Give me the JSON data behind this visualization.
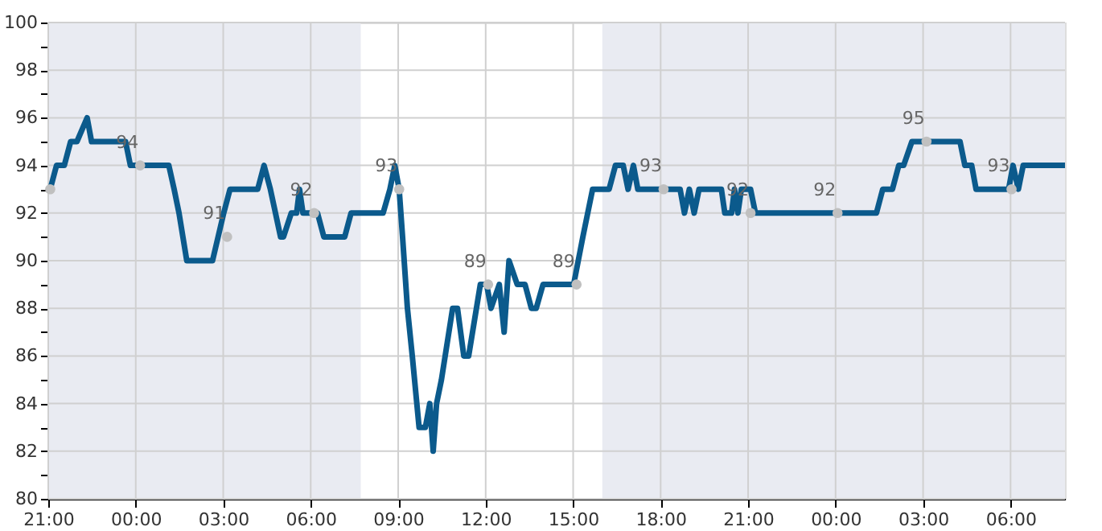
{
  "chart_data": {
    "type": "line",
    "x": [
      "2000-01-01T21:04",
      "2000-01-01T21:17",
      "2000-01-01T21:33",
      "2000-01-01T21:46",
      "2000-01-01T21:59",
      "2000-01-01T22:20",
      "2000-01-01T22:29",
      "2000-01-01T22:40",
      "2000-01-01T23:39",
      "2000-01-01T23:49",
      "2000-01-02T01:08",
      "2000-01-02T01:19",
      "2000-01-02T01:29",
      "2000-01-02T01:45",
      "2000-01-02T02:38",
      "2000-01-02T03:01",
      "2000-01-02T03:14",
      "2000-01-02T04:11",
      "2000-01-02T04:24",
      "2000-01-02T04:37",
      "2000-01-02T04:58",
      "2000-01-02T05:04",
      "2000-01-02T05:20",
      "2000-01-02T05:31",
      "2000-01-02T05:37",
      "2000-01-02T05:44",
      "2000-01-02T06:14",
      "2000-01-02T06:27",
      "2000-01-02T07:10",
      "2000-01-02T07:23",
      "2000-01-02T08:29",
      "2000-01-02T08:43",
      "2000-01-02T08:53",
      "2000-01-02T09:02",
      "2000-01-02T09:09",
      "2000-01-02T09:19",
      "2000-01-02T09:29",
      "2000-01-02T09:43",
      "2000-01-02T09:56",
      "2000-01-02T10:05",
      "2000-01-02T10:12",
      "2000-01-02T10:19",
      "2000-01-02T10:29",
      "2000-01-02T10:52",
      "2000-01-02T11:02",
      "2000-01-02T11:15",
      "2000-01-02T11:25",
      "2000-01-02T11:49",
      "2000-01-02T12:02",
      "2000-01-02T12:11",
      "2000-01-02T12:28",
      "2000-01-02T12:38",
      "2000-01-02T12:48",
      "2000-01-02T13:05",
      "2000-01-02T13:21",
      "2000-01-02T13:34",
      "2000-01-02T13:44",
      "2000-01-02T13:58",
      "2000-01-02T15:01",
      "2000-01-02T15:20",
      "2000-01-02T15:40",
      "2000-01-02T16:01",
      "2000-01-02T16:14",
      "2000-01-02T16:27",
      "2000-01-02T16:43",
      "2000-01-02T16:53",
      "2000-01-02T17:04",
      "2000-01-02T17:13",
      "2000-01-02T17:53",
      "2000-01-02T18:40",
      "2000-01-02T18:49",
      "2000-01-02T18:59",
      "2000-01-02T19:09",
      "2000-01-02T19:19",
      "2000-01-02T20:05",
      "2000-01-02T20:12",
      "2000-01-02T20:26",
      "2000-01-02T20:32",
      "2000-01-02T20:39",
      "2000-01-02T20:46",
      "2000-01-02T21:05",
      "2000-01-02T21:15",
      "2000-01-02T23:58",
      "2000-01-03T01:24",
      "2000-01-03T01:37",
      "2000-01-03T01:57",
      "2000-01-03T02:10",
      "2000-01-03T02:20",
      "2000-01-03T02:37",
      "2000-01-03T04:16",
      "2000-01-03T04:26",
      "2000-01-03T04:40",
      "2000-01-03T04:49",
      "2000-01-03T04:56",
      "2000-01-03T05:56",
      "2000-01-03T06:05",
      "2000-01-03T06:16",
      "2000-01-03T06:26",
      "2000-01-03T07:52"
    ],
    "series": [
      {
        "color": "#0b5a8c",
        "values": [
          93,
          94,
          94,
          95,
          95,
          96,
          95,
          95,
          95,
          94,
          94,
          93,
          92,
          90,
          90,
          92,
          93,
          93,
          94,
          93,
          91,
          91,
          92,
          92,
          93,
          92,
          92,
          91,
          91,
          92,
          92,
          93,
          94,
          93,
          91,
          88,
          86,
          83,
          83,
          84,
          82,
          84,
          85,
          88,
          88,
          86,
          86,
          89,
          89,
          88,
          89,
          87,
          90,
          89,
          89,
          88,
          88,
          89,
          89,
          91,
          93,
          93,
          93,
          94,
          94,
          93,
          94,
          93,
          93,
          93,
          92,
          93,
          92,
          93,
          93,
          92,
          92,
          93,
          92,
          93,
          93,
          92,
          92,
          92,
          93,
          93,
          94,
          94,
          95,
          95,
          94,
          94,
          93,
          93,
          93,
          94,
          93,
          94,
          94
        ]
      },
      {
        "type": "scatter",
        "color": "#c0c0c0",
        "x": [
          "2000-01-01T21:04",
          "2000-01-02T00:09",
          "2000-01-02T03:08",
          "2000-01-02T06:07",
          "2000-01-02T09:02",
          "2000-01-02T12:05",
          "2000-01-02T15:07",
          "2000-01-02T18:06",
          "2000-01-02T21:05",
          "2000-01-03T00:04",
          "2000-01-03T03:07",
          "2000-01-03T06:02"
        ],
        "values": [
          93,
          94,
          91,
          92,
          93,
          89,
          89,
          93,
          92,
          92,
          95,
          93
        ],
        "value_labels": [
          null,
          "94",
          "91",
          "92",
          "93",
          "89",
          "89",
          "93",
          "92",
          "92",
          "95",
          "93"
        ]
      }
    ],
    "xlim": [
      "2000-01-01T21:00",
      "2000-01-03T07:52"
    ],
    "xticks": [
      {
        "value": "2000-01-01T21:00",
        "label": "21:00"
      },
      {
        "value": "2000-01-02T00:00",
        "label": "00:00"
      },
      {
        "value": "2000-01-02T03:00",
        "label": "03:00"
      },
      {
        "value": "2000-01-02T06:00",
        "label": "06:00"
      },
      {
        "value": "2000-01-02T09:00",
        "label": "09:00"
      },
      {
        "value": "2000-01-02T12:00",
        "label": "12:00"
      },
      {
        "value": "2000-01-02T15:00",
        "label": "15:00"
      },
      {
        "value": "2000-01-02T18:00",
        "label": "18:00"
      },
      {
        "value": "2000-01-02T21:00",
        "label": "21:00"
      },
      {
        "value": "2000-01-03T00:00",
        "label": "00:00"
      },
      {
        "value": "2000-01-03T03:00",
        "label": "03:00"
      },
      {
        "value": "2000-01-03T06:00",
        "label": "06:00"
      }
    ],
    "ylim": [
      80,
      100
    ],
    "yticks": [
      {
        "value": 80,
        "label": "80"
      },
      {
        "value": 81,
        "label": null
      },
      {
        "value": 82,
        "label": "82"
      },
      {
        "value": 83,
        "label": null
      },
      {
        "value": 84,
        "label": "84"
      },
      {
        "value": 85,
        "label": null
      },
      {
        "value": 86,
        "label": "86"
      },
      {
        "value": 87,
        "label": null
      },
      {
        "value": 88,
        "label": "88"
      },
      {
        "value": 89,
        "label": null
      },
      {
        "value": 90,
        "label": "90"
      },
      {
        "value": 91,
        "label": null
      },
      {
        "value": 92,
        "label": "92"
      },
      {
        "value": 93,
        "label": null
      },
      {
        "value": 94,
        "label": "94"
      },
      {
        "value": 95,
        "label": null
      },
      {
        "value": 96,
        "label": "96"
      },
      {
        "value": 97,
        "label": null
      },
      {
        "value": 98,
        "label": "98"
      },
      {
        "value": 99,
        "label": null
      },
      {
        "value": 100,
        "label": "100"
      }
    ],
    "bands": [
      {
        "axis": "x",
        "from": "2000-01-01T21:00",
        "to": "2000-01-02T07:43",
        "color": "#e9ebf2"
      },
      {
        "axis": "x",
        "from": "2000-01-02T16:00",
        "to": "2000-01-03T07:52",
        "color": "#e9ebf2"
      }
    ],
    "grid": true
  }
}
